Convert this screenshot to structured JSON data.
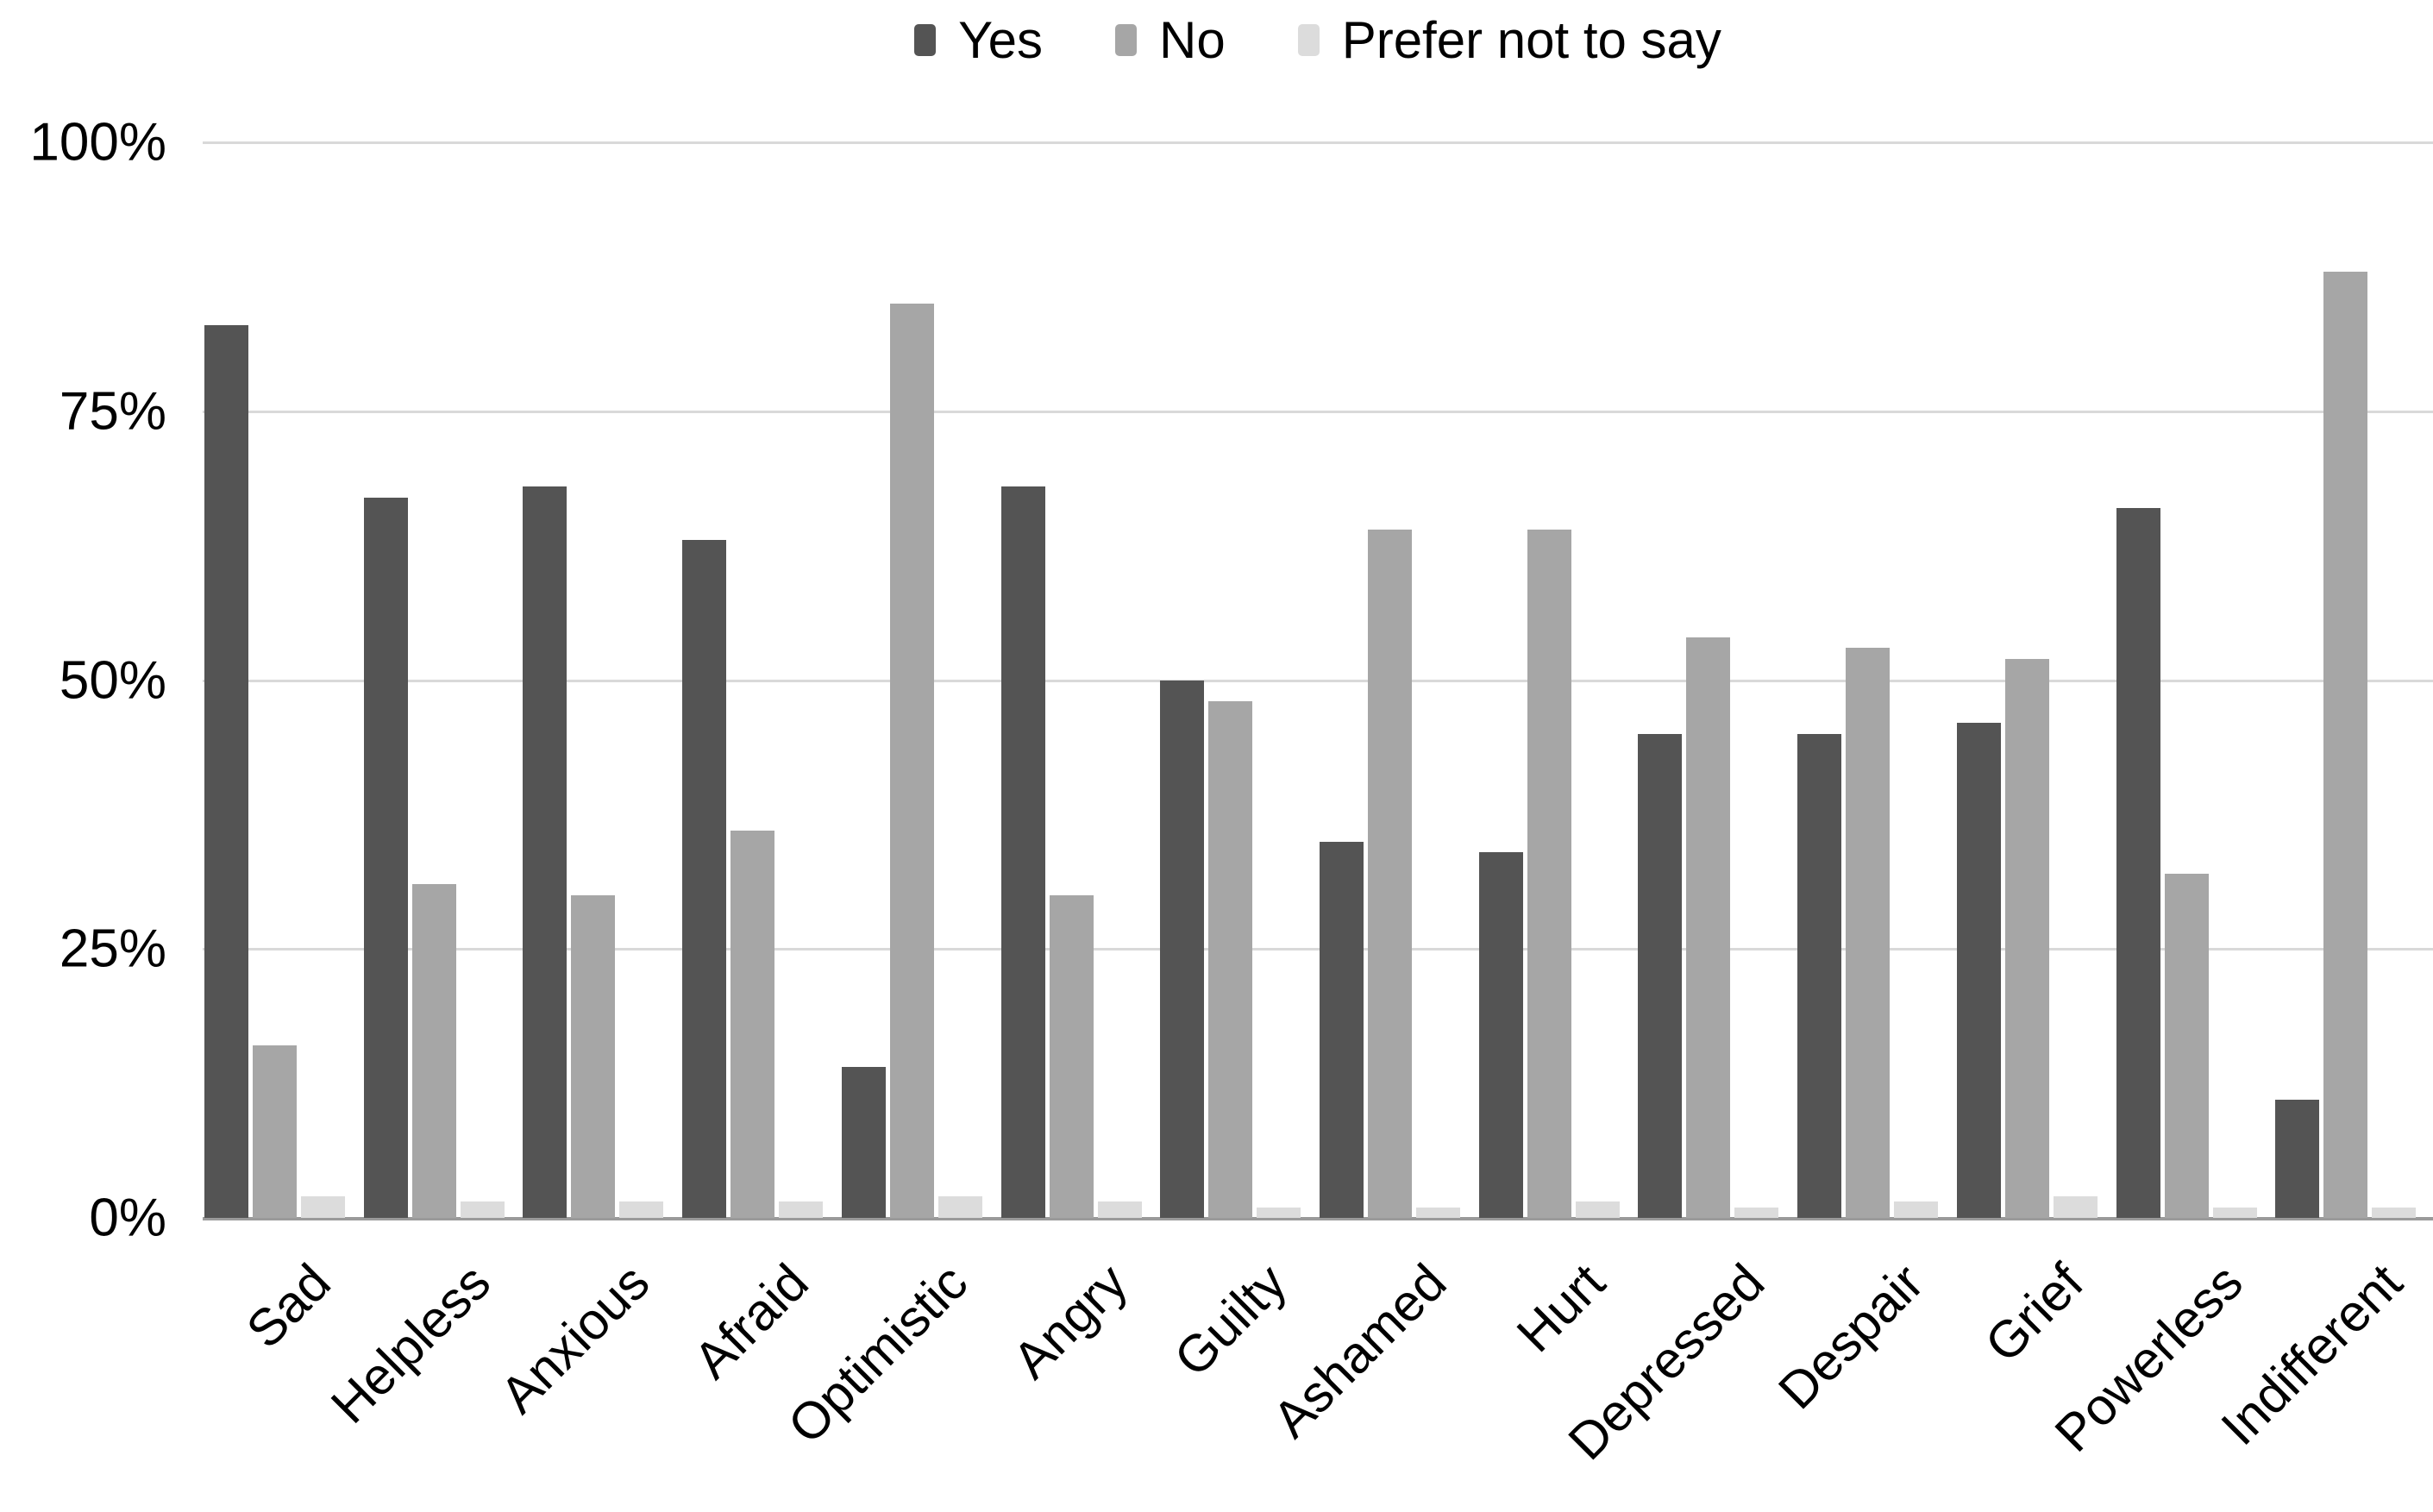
{
  "chart_data": {
    "type": "bar",
    "title": "",
    "categories": [
      "Sad",
      "Helpless",
      "Anxious",
      "Afraid",
      "Optimistic",
      "Angry",
      "Guilty",
      "Ashamed",
      "Hurt",
      "Depressed",
      "Despair",
      "Grief",
      "Powerless",
      "Indifferent"
    ],
    "series": [
      {
        "name": "Yes",
        "color": "#545454",
        "values": [
          83,
          67,
          68,
          63,
          14,
          68,
          50,
          35,
          34,
          45,
          45,
          46,
          66,
          11
        ]
      },
      {
        "name": "No",
        "color": "#a6a6a6",
        "values": [
          16,
          31,
          30,
          36,
          85,
          30,
          48,
          64,
          64,
          54,
          53,
          52,
          32,
          88
        ]
      },
      {
        "name": "Prefer not to say",
        "color": "#dcdcdc",
        "values": [
          2,
          1.5,
          1.5,
          1.5,
          2,
          1.5,
          1,
          1,
          1.5,
          1,
          1.5,
          2,
          1,
          1
        ]
      }
    ],
    "xlabel": "",
    "ylabel": "",
    "ylim": [
      0,
      100
    ],
    "y_ticks": [
      "100%",
      "75%",
      "50%",
      "25%",
      "0%"
    ],
    "y_tick_values": [
      100,
      75,
      50,
      25,
      0
    ],
    "grid": true,
    "legend_position": "top"
  },
  "colors": {
    "background": "#ffffff",
    "gridline": "#d9d9d9",
    "baseline": "#9a9a9a",
    "text": "#000000"
  }
}
